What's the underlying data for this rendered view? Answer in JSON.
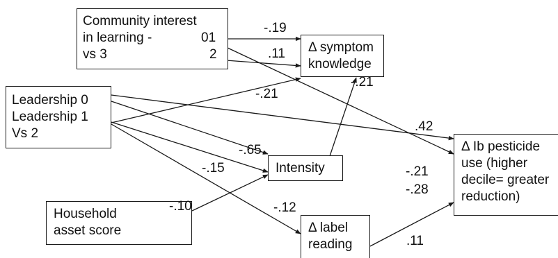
{
  "nodes": {
    "community": {
      "line1": "Community interest",
      "line2a": "in learning -",
      "line2b": "01",
      "line3a": "vs 3",
      "line3b": "2"
    },
    "symptom": {
      "line1": "Δ symptom",
      "line2": "knowledge"
    },
    "leadership": {
      "line1": "Leadership 0",
      "line2": "Leadership 1",
      "line3": "Vs 2"
    },
    "intensity": {
      "label": "Intensity"
    },
    "pesticide": {
      "line1": "Δ Ib pesticide",
      "line2": "use (higher",
      "line3": "decile= greater",
      "line4": "reduction)"
    },
    "household": {
      "line1": "Household",
      "line2": "asset score"
    },
    "label_reading": {
      "line1": "Δ label",
      "line2": "reading"
    }
  },
  "coefficients": {
    "c01_symptom": "-.19",
    "c2_symptom": ".11",
    "c01_pesticide": "-.21",
    "l1_symptom": "-.21",
    "l0_pesticide": ".42",
    "l0_intensity": "-.65",
    "l1_labelreading": "-.15",
    "intensity_symptom": "-.21",
    "household_intensity": "-.10",
    "l1_intensity": "-.12",
    "l1_pesticide": "-.28",
    "labelreading_pesticide": ".11"
  }
}
